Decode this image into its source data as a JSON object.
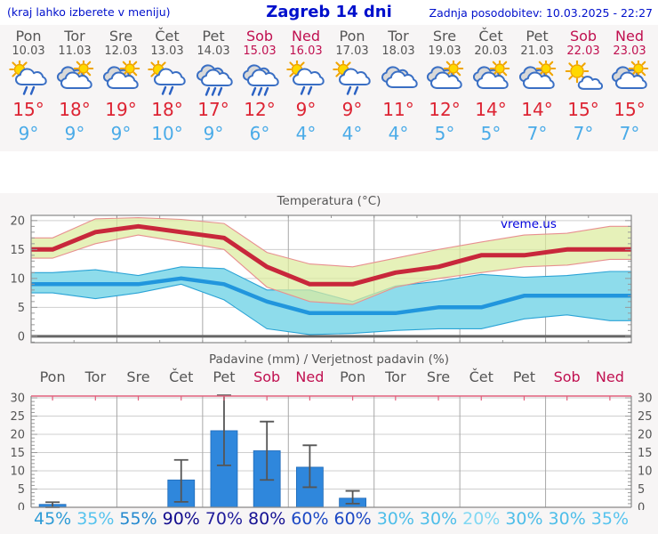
{
  "header": {
    "left": "(kraj lahko izberete v meniju)",
    "title": "Zagreb 14 dni",
    "right": "Zadnja posodobitev: 10.03.2025 - 22:27"
  },
  "watermark": {
    "text": "vreme.us",
    "color": "#0000dd"
  },
  "colors": {
    "header_blue": "#0010cc",
    "day_gray": "#555555",
    "weekend_red": "#c01050",
    "tmax_text": "#dd2433",
    "tmin_text": "#4aabe8",
    "frame": "#888888",
    "grid_h": "#cfcfcf",
    "grid_v": "#a8a8a8",
    "tick": "#999999",
    "pink_axis": "#e0607c",
    "whisker": "#555555",
    "zero_line": "#666666",
    "section_bg": "#f7f5f5",
    "plot_bg": "#ffffff"
  },
  "days": [
    {
      "name": "Pon",
      "date": "10.03",
      "weekend": false,
      "icon": "sun_cloud_rain",
      "tmax": "15°",
      "tmin": "9°"
    },
    {
      "name": "Tor",
      "date": "11.03",
      "weekend": false,
      "icon": "cloud_sun",
      "tmax": "18°",
      "tmin": "9°"
    },
    {
      "name": "Sre",
      "date": "12.03",
      "weekend": false,
      "icon": "cloud_sun",
      "tmax": "19°",
      "tmin": "9°"
    },
    {
      "name": "Čet",
      "date": "13.03",
      "weekend": false,
      "icon": "sun_cloud_rain",
      "tmax": "18°",
      "tmin": "10°"
    },
    {
      "name": "Pet",
      "date": "14.03",
      "weekend": false,
      "icon": "clouds_rain",
      "tmax": "17°",
      "tmin": "9°"
    },
    {
      "name": "Sob",
      "date": "15.03",
      "weekend": true,
      "icon": "clouds_rain",
      "tmax": "12°",
      "tmin": "6°"
    },
    {
      "name": "Ned",
      "date": "16.03",
      "weekend": true,
      "icon": "sun_cloud_rain",
      "tmax": "9°",
      "tmin": "4°"
    },
    {
      "name": "Pon",
      "date": "17.03",
      "weekend": false,
      "icon": "sun_cloud_rain",
      "tmax": "9°",
      "tmin": "4°"
    },
    {
      "name": "Tor",
      "date": "18.03",
      "weekend": false,
      "icon": "clouds",
      "tmax": "11°",
      "tmin": "4°"
    },
    {
      "name": "Sre",
      "date": "19.03",
      "weekend": false,
      "icon": "cloud_sun",
      "tmax": "12°",
      "tmin": "5°"
    },
    {
      "name": "Čet",
      "date": "20.03",
      "weekend": false,
      "icon": "cloud_sun",
      "tmax": "14°",
      "tmin": "5°"
    },
    {
      "name": "Pet",
      "date": "21.03",
      "weekend": false,
      "icon": "cloud_sun",
      "tmax": "14°",
      "tmin": "7°"
    },
    {
      "name": "Sob",
      "date": "22.03",
      "weekend": true,
      "icon": "sun_cloud",
      "tmax": "15°",
      "tmin": "7°"
    },
    {
      "name": "Ned",
      "date": "23.03",
      "weekend": true,
      "icon": "cloud_sun",
      "tmax": "15°",
      "tmin": "7°"
    }
  ],
  "chart_data": [
    {
      "type": "line",
      "title": "Temperatura (°C)",
      "categories": [
        "Pon",
        "Tor",
        "Sre",
        "Čet",
        "Pet",
        "Sob",
        "Ned",
        "Pon",
        "Tor",
        "Sre",
        "Čet",
        "Pet",
        "Sob",
        "Ned"
      ],
      "ylim": [
        -1.1,
        20.9
      ],
      "yticks": [
        0,
        5,
        10,
        15,
        20
      ],
      "grid": true,
      "series": [
        {
          "name": "max-temp",
          "color": "#c8273b",
          "width": 5,
          "values": [
            15,
            18,
            19,
            18,
            17,
            12,
            9,
            9,
            11,
            12,
            14,
            14,
            15,
            15
          ]
        },
        {
          "name": "min-temp",
          "color": "#2196dd",
          "width": 4.5,
          "values": [
            9,
            9,
            9,
            10,
            9,
            6,
            4,
            4,
            4,
            5,
            5,
            7,
            7,
            7
          ]
        }
      ],
      "bands": [
        {
          "name": "min-temp-range",
          "fill": "#8edceb",
          "edge": "#2aa3d6",
          "opacity": 1,
          "upper": [
            11,
            11.5,
            10.5,
            12,
            11.7,
            8,
            8,
            6,
            8.7,
            9.5,
            10.7,
            10.2,
            10.5,
            11.2
          ],
          "lower": [
            7.5,
            6.5,
            7.5,
            9,
            6.3,
            1.3,
            0.3,
            0.5,
            1,
            1.3,
            1.3,
            3,
            3.7,
            2.7
          ]
        },
        {
          "name": "max-temp-range",
          "fill": "#dcec9e",
          "edge": "#e89090",
          "opacity": 0.72,
          "upper": [
            17,
            20.3,
            20.5,
            20.2,
            19.5,
            14.5,
            12.5,
            12,
            13.5,
            15,
            16.3,
            17.5,
            17.8,
            19
          ],
          "lower": [
            13.5,
            16,
            17.5,
            16.3,
            15,
            8.5,
            6,
            5.5,
            8.5,
            10,
            11,
            12,
            12.3,
            13.3
          ]
        }
      ]
    },
    {
      "type": "bar",
      "title": "Padavine (mm) / Verjetnost padavin (%)",
      "categories": [
        "Pon",
        "Tor",
        "Sre",
        "Čet",
        "Pet",
        "Sob",
        "Ned",
        "Pon",
        "Tor",
        "Sre",
        "Čet",
        "Pet",
        "Sob",
        "Ned"
      ],
      "values": [
        0.8,
        0,
        0,
        7.5,
        21,
        15.5,
        11,
        2.5,
        0,
        0,
        0,
        0,
        0,
        0
      ],
      "whiskers": [
        [
          0,
          1.4
        ],
        null,
        null,
        [
          1.5,
          13
        ],
        [
          11.5,
          30.7
        ],
        [
          7.5,
          23.5
        ],
        [
          5.5,
          17
        ],
        [
          1,
          4.5
        ],
        null,
        null,
        null,
        null,
        null,
        null
      ],
      "bar_color": "#2f87dc",
      "bar_edge": "#1f6ab8",
      "ylim": [
        0,
        30.5
      ],
      "yticks": [
        0,
        5,
        10,
        15,
        20,
        25,
        30
      ],
      "grid": true,
      "probability_labels": [
        "45%",
        "35%",
        "55%",
        "90%",
        "70%",
        "80%",
        "60%",
        "60%",
        "30%",
        "30%",
        "20%",
        "30%",
        "30%",
        "35%"
      ],
      "probability_colors": [
        "#2d9bd6",
        "#56c3ee",
        "#2489cf",
        "#120c8e",
        "#201d9b",
        "#161293",
        "#1d49c4",
        "#1d49c4",
        "#4ebee9",
        "#4ebee9",
        "#82d8f3",
        "#4ebee9",
        "#4ebee9",
        "#56c3ee"
      ]
    }
  ]
}
